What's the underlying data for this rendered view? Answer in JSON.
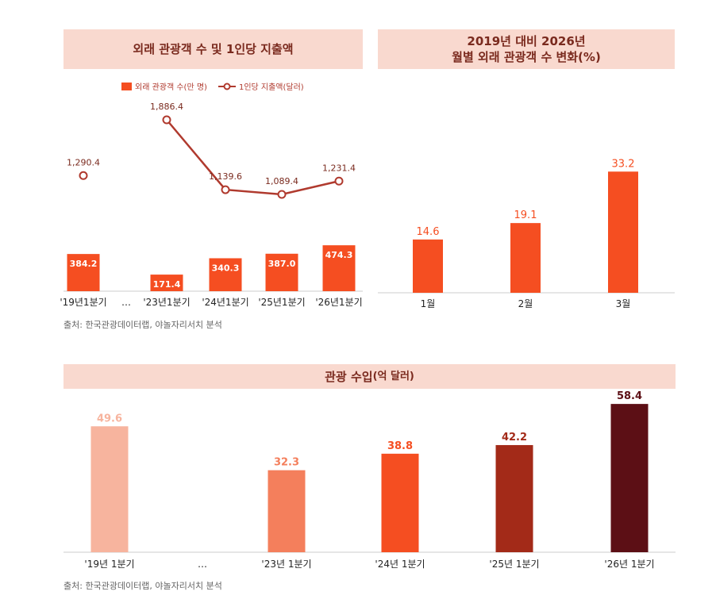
{
  "panel1": {
    "title": "외래 관광객 수 및 1인당 지출액",
    "legend_bar": "외래 관광객 수(만 명)",
    "legend_line": "1인당 지출액(달러)",
    "source": "출처: 한국관광데이터랩, 야놀자리서치 분석"
  },
  "panel2": {
    "title_line1": "2019년 대비 2026년",
    "title_line2": "월별 외래 관광객 수 변화(%)"
  },
  "panel3": {
    "title_main": "관광 수입",
    "title_unit": "(억 달러)",
    "source": "출처: 한국관광데이터랩, 야놀자리서치 분석"
  },
  "colors": {
    "bar": "#f54e21",
    "line": "#b03a2e",
    "title_bg": "#f9d9cf",
    "revenue": [
      "#f7b49e",
      "#f47f5c",
      "#f54e21",
      "#a32a18",
      "#5c0f15"
    ]
  },
  "chart_data": [
    {
      "type": "bar",
      "categories": [
        "'19년1분기",
        "…",
        "'23년1분기",
        "'24년1분기",
        "'25년1분기",
        "'26년1분기"
      ],
      "series": [
        {
          "name": "외래 관광객 수(만 명)",
          "type": "bar",
          "values": [
            384.2,
            null,
            171.4,
            340.3,
            387.0,
            474.3
          ],
          "labels": [
            "384.2",
            "",
            "171.4",
            "340.3",
            "387.0",
            "474.3"
          ]
        },
        {
          "name": "1인당 지출액(달러)",
          "type": "line",
          "values": [
            1290.4,
            null,
            1886.4,
            1139.6,
            1089.4,
            1231.4
          ],
          "labels": [
            "1,290.4",
            "",
            "1,886.4",
            "1,139.6",
            "1,089.4",
            "1,231.4"
          ]
        }
      ]
    },
    {
      "type": "bar",
      "categories": [
        "1월",
        "2월",
        "3월"
      ],
      "values": [
        14.6,
        19.1,
        33.2
      ],
      "labels": [
        "14.6",
        "19.1",
        "33.2"
      ]
    },
    {
      "type": "bar",
      "categories": [
        "'19년 1분기",
        "…",
        "'23년 1분기",
        "'24년 1분기",
        "'25년 1분기",
        "'26년 1분기"
      ],
      "values": [
        49.6,
        null,
        32.3,
        38.8,
        42.2,
        58.4
      ],
      "labels": [
        "49.6",
        "",
        "32.3",
        "38.8",
        "42.2",
        "58.4"
      ]
    }
  ]
}
